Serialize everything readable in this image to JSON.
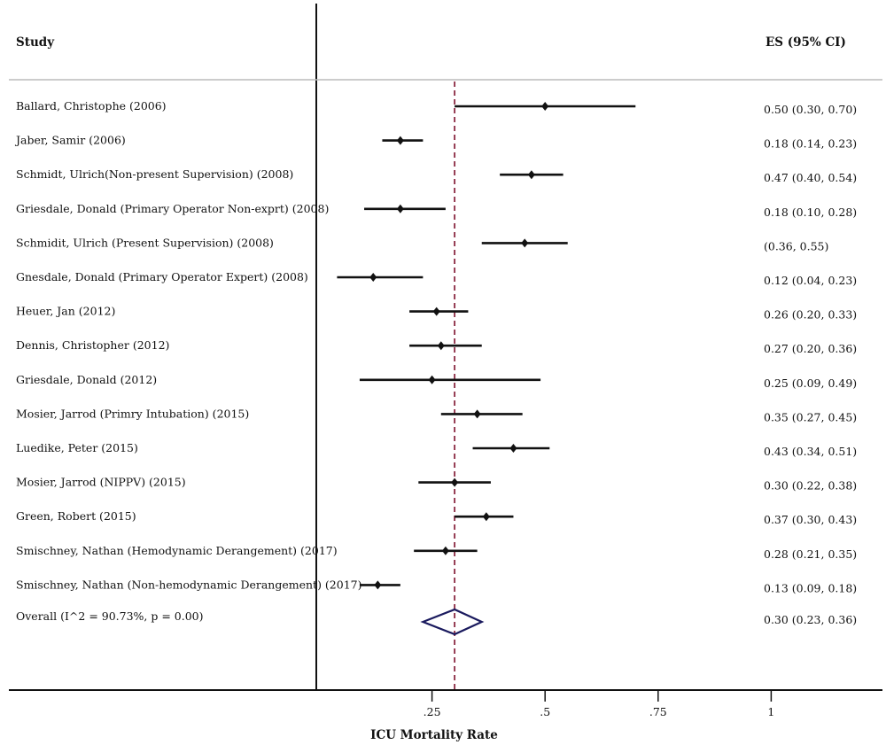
{
  "chart_data": {
    "type": "forest",
    "header": {
      "study": "Study",
      "es": "ES (95% CI)"
    },
    "xlabel": "ICU Mortality Rate",
    "xlim": [
      0.0,
      1.25
    ],
    "ticks": [
      {
        "value": 0.25,
        "label": ".25"
      },
      {
        "value": 0.5,
        "label": ".5"
      },
      {
        "value": 0.75,
        "label": ".75"
      },
      {
        "value": 1.0,
        "label": "1"
      }
    ],
    "reference_line": 0.3,
    "reference_color": "#8b2942",
    "diamond_color": "#1a1a5e",
    "studies": [
      {
        "label": "Ballard, Christophe (2006)",
        "es": 0.5,
        "lo": 0.3,
        "hi": 0.7,
        "ci_text": "0.50 (0.30, 0.70)"
      },
      {
        "label": "Jaber, Samir (2006)",
        "es": 0.18,
        "lo": 0.14,
        "hi": 0.23,
        "ci_text": "0.18 (0.14, 0.23)"
      },
      {
        "label": "Schmidt, Ulrich(Non-present Supervision) (2008)",
        "es": 0.47,
        "lo": 0.4,
        "hi": 0.54,
        "ci_text": "0.47 (0.40, 0.54)"
      },
      {
        "label": "Griesdale, Donald (Primary Operator Non-exprt) (2008)",
        "es": 0.18,
        "lo": 0.1,
        "hi": 0.28,
        "ci_text": "0.18 (0.10, 0.28)"
      },
      {
        "label": "Schmidit, Ulrich (Present Supervision) (2008)",
        "es": 0.455,
        "lo": 0.36,
        "hi": 0.55,
        "ci_text": "(0.36, 0.55)"
      },
      {
        "label": "Gnesdale, Donald (Primary Operator Expert) (2008)",
        "es": 0.12,
        "lo": 0.04,
        "hi": 0.23,
        "ci_text": "0.12 (0.04, 0.23)"
      },
      {
        "label": "Heuer, Jan (2012)",
        "es": 0.26,
        "lo": 0.2,
        "hi": 0.33,
        "ci_text": "0.26 (0.20, 0.33)"
      },
      {
        "label": "Dennis, Christopher (2012)",
        "es": 0.27,
        "lo": 0.2,
        "hi": 0.36,
        "ci_text": "0.27 (0.20, 0.36)"
      },
      {
        "label": "Griesdale, Donald (2012)",
        "es": 0.25,
        "lo": 0.09,
        "hi": 0.49,
        "ci_text": "0.25 (0.09, 0.49)"
      },
      {
        "label": "Mosier, Jarrod (Primry Intubation) (2015)",
        "es": 0.35,
        "lo": 0.27,
        "hi": 0.45,
        "ci_text": "0.35 (0.27, 0.45)"
      },
      {
        "label": "Luedike, Peter (2015)",
        "es": 0.43,
        "lo": 0.34,
        "hi": 0.51,
        "ci_text": "0.43 (0.34, 0.51)"
      },
      {
        "label": "Mosier, Jarrod (NIPPV) (2015)",
        "es": 0.3,
        "lo": 0.22,
        "hi": 0.38,
        "ci_text": "0.30 (0.22, 0.38)"
      },
      {
        "label": "Green, Robert (2015)",
        "es": 0.37,
        "lo": 0.3,
        "hi": 0.43,
        "ci_text": "0.37 (0.30, 0.43)"
      },
      {
        "label": "Smischney, Nathan (Hemodynamic Derangement) (2017)",
        "es": 0.28,
        "lo": 0.21,
        "hi": 0.35,
        "ci_text": "0.28 (0.21, 0.35)"
      },
      {
        "label": "Smischney, Nathan (Non-hemodynamic Derangement) (2017)",
        "es": 0.13,
        "lo": 0.09,
        "hi": 0.18,
        "ci_text": "0.13 (0.09, 0.18)"
      }
    ],
    "overall": {
      "label": "Overall (I^2 = 90.73%, p = 0.00)",
      "es": 0.3,
      "lo": 0.23,
      "hi": 0.36,
      "ci_text": "0.30 (0.23, 0.36)"
    }
  }
}
